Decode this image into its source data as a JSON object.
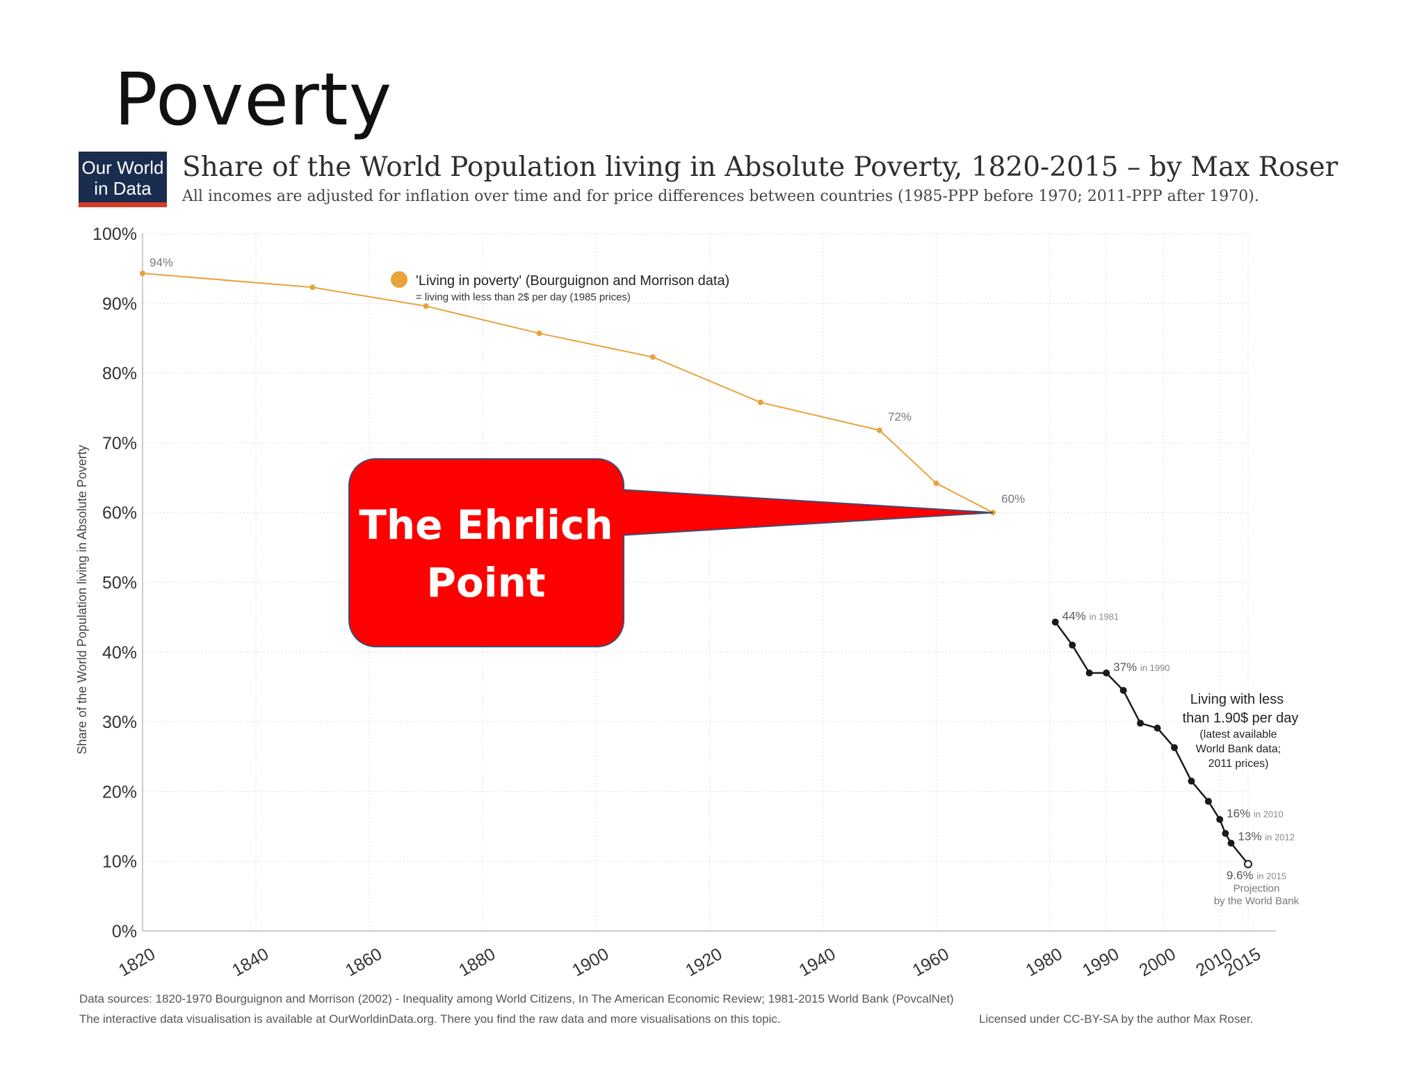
{
  "slide": {
    "title": "Poverty"
  },
  "logo": {
    "line1": "Our World",
    "line2": "in Data"
  },
  "header": {
    "title": "Share of the World Population living in Absolute Poverty, 1820-2015 – by Max Roser",
    "subtitle": "All incomes are adjusted for inflation over time and for price differences between countries (1985-PPP before 1970; 2011-PPP after 1970)."
  },
  "footer": {
    "sources": "Data sources: 1820-1970 Bourguignon and Morrison (2002) - Inequality among World Citizens, In The American Economic Review; 1981-2015 World Bank (PovcalNet)",
    "note": "The interactive data visualisation is available at OurWorldinData.org. There you find the raw data and more visualisations on this topic.",
    "license": "Licensed under CC-BY-SA by the author Max Roser."
  },
  "callout": {
    "line1": "The Ehrlich",
    "line2": "Point",
    "color": "#ff0000",
    "border": "#3c4f73"
  },
  "chart_data": {
    "type": "line",
    "ylabel": "Share of the World Population living in Absolute Poverty",
    "xlim": [
      1820,
      2015
    ],
    "ylim": [
      0,
      100
    ],
    "x_ticks": [
      1820,
      1840,
      1860,
      1880,
      1900,
      1920,
      1940,
      1960,
      1980,
      1990,
      2000,
      2010,
      2015
    ],
    "y_ticks": [
      {
        "value": 0,
        "label": "0%"
      },
      {
        "value": 10,
        "label": "10%"
      },
      {
        "value": 20,
        "label": "20%"
      },
      {
        "value": 30,
        "label": "30%"
      },
      {
        "value": 40,
        "label": "40%"
      },
      {
        "value": 50,
        "label": "50%"
      },
      {
        "value": 60,
        "label": "60%"
      },
      {
        "value": 70,
        "label": "70%"
      },
      {
        "value": 80,
        "label": "80%"
      },
      {
        "value": 90,
        "label": "90%"
      },
      {
        "value": 100,
        "label": "100%"
      }
    ],
    "grid": true,
    "series": [
      {
        "name": "'Living in poverty' (Bourguignon and Morrison data)",
        "note": "= living with less than 2$ per day (1985 prices)",
        "color": "#e8a33d",
        "x": [
          1820,
          1850,
          1870,
          1890,
          1910,
          1929,
          1950,
          1960,
          1970
        ],
        "y": [
          94.3,
          92.3,
          89.6,
          85.7,
          82.3,
          75.8,
          71.8,
          64.2,
          60.0
        ]
      },
      {
        "name": "Living with less than 1.90$ per day",
        "note_lines": [
          "(latest available",
          "World Bank data;",
          "2011 prices)"
        ],
        "color": "#1a1a1a",
        "x": [
          1981,
          1984,
          1987,
          1990,
          1993,
          1996,
          1999,
          2002,
          2005,
          2008,
          2010,
          2011,
          2012,
          2015
        ],
        "y": [
          44.3,
          41.0,
          37.0,
          37.0,
          34.5,
          29.8,
          29.1,
          26.3,
          21.5,
          18.6,
          16.0,
          14.0,
          12.6,
          9.6
        ],
        "projected_last": true
      }
    ],
    "annotations": [
      {
        "x": 1820,
        "y": 94.3,
        "text": "94%",
        "series": 0
      },
      {
        "x": 1950,
        "y": 71.8,
        "text": "72%",
        "series": 0
      },
      {
        "x": 1970,
        "y": 60.0,
        "text": "60%",
        "series": 0
      },
      {
        "x": 1981,
        "y": 44.3,
        "text": "44%",
        "suffix": "in 1981",
        "series": 1
      },
      {
        "x": 1990,
        "y": 37.0,
        "text": "37%",
        "suffix": "in 1990",
        "series": 1
      },
      {
        "x": 2010,
        "y": 16.0,
        "text": "16%",
        "suffix": "in 2010",
        "series": 1
      },
      {
        "x": 2012,
        "y": 12.6,
        "text": "13%",
        "suffix": "in 2012",
        "series": 1
      },
      {
        "x": 2015,
        "y": 9.6,
        "text": "9.6%",
        "suffix": "in 2015",
        "extra": [
          "Projection",
          "by the World Bank"
        ],
        "series": 1
      }
    ]
  }
}
